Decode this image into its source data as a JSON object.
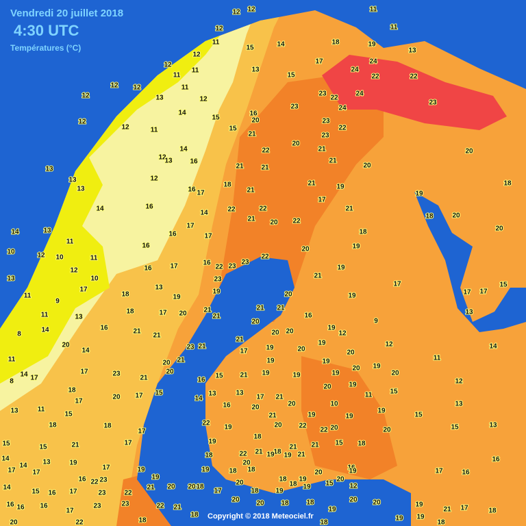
{
  "header": {
    "date": "Vendredi 20 juillet 2018",
    "time": "4:30 UTC",
    "subtitle": "Températures (°C)"
  },
  "copyright": "Copyright © 2018 Meteociel.fr",
  "stations": [
    12,
    12,
    11,
    11,
    12,
    15,
    14,
    18,
    19,
    13,
    11,
    12,
    12,
    11,
    11,
    12,
    12,
    12,
    13,
    11,
    13,
    15,
    17,
    24,
    24,
    22,
    22,
    24,
    23,
    22,
    24,
    23,
    23,
    12,
    14,
    12,
    12,
    11,
    15,
    15,
    16,
    20,
    23,
    22,
    21,
    20,
    23,
    21,
    14,
    12,
    16,
    13,
    22,
    21,
    21,
    21,
    20,
    20,
    13,
    13,
    13,
    12,
    16,
    17,
    18,
    21,
    21,
    19,
    18,
    14,
    16,
    14,
    22,
    22,
    21,
    20,
    22,
    17,
    21,
    19,
    18,
    20,
    20,
    14,
    13,
    11,
    10,
    12,
    10,
    11,
    16,
    16,
    17,
    17,
    17,
    16,
    22,
    23,
    22,
    20,
    18,
    19,
    19,
    17,
    17,
    17,
    15,
    13,
    12,
    10,
    16,
    13,
    19,
    23,
    23,
    21,
    20,
    19,
    19,
    13,
    11,
    9,
    17,
    18,
    18,
    17,
    20,
    21,
    21,
    21,
    21,
    16,
    9,
    11,
    13,
    16,
    21,
    20,
    20,
    20,
    19,
    12,
    8,
    14,
    14,
    21,
    23,
    21,
    21,
    19,
    20,
    19,
    20,
    12,
    11,
    20,
    21,
    20,
    17,
    19,
    19,
    19,
    20,
    19,
    20,
    11,
    14,
    17,
    17,
    23,
    21,
    20,
    16,
    15,
    21,
    19,
    19,
    20,
    19,
    15,
    12,
    8,
    14,
    18,
    20,
    17,
    13,
    13,
    17,
    21,
    20,
    10,
    11,
    13,
    11,
    17,
    15,
    15,
    14,
    16,
    20,
    21,
    19,
    19,
    19,
    15,
    13,
    18,
    18,
    17,
    22,
    19,
    18,
    20,
    22,
    20,
    22,
    20,
    15,
    13,
    15,
    15,
    21,
    17,
    19,
    22,
    21,
    18,
    21,
    21,
    15,
    18,
    14,
    14,
    13,
    19,
    17,
    18,
    20,
    19,
    19,
    21,
    16,
    16,
    17,
    17,
    16,
    22,
    23,
    19,
    19,
    19,
    18,
    18,
    18,
    19,
    20,
    20,
    19,
    17,
    16,
    14,
    15,
    16,
    17,
    23,
    22,
    21,
    20,
    20,
    18,
    17,
    20,
    18,
    19,
    18,
    19,
    15,
    12,
    16,
    16,
    16,
    17,
    23,
    23,
    22,
    21,
    20,
    20,
    18,
    18,
    19,
    20,
    20,
    19,
    21,
    17,
    18,
    20,
    22,
    18,
    18,
    18,
    19,
    19,
    18
  ]
}
